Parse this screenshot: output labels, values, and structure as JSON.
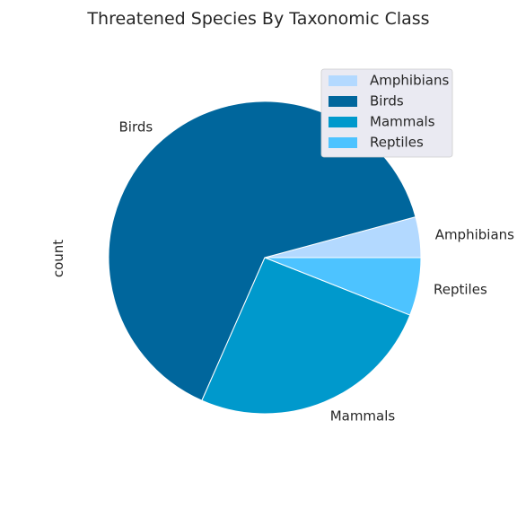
{
  "chart_data": {
    "type": "pie",
    "title": "Threatened Species By Taxonomic Class",
    "ylabel": "count",
    "start_angle_deg": 0,
    "direction": "counterclockwise",
    "slices": [
      {
        "label": "Amphibians",
        "value": 4.2,
        "color": "#b3d9ff"
      },
      {
        "label": "Birds",
        "value": 64.2,
        "color": "#00669c"
      },
      {
        "label": "Mammals",
        "value": 25.6,
        "color": "#0099cc"
      },
      {
        "label": "Reptiles",
        "value": 6.0,
        "color": "#4dc3ff"
      }
    ],
    "legend": {
      "placement": "top-right",
      "entries": [
        "Amphibians",
        "Birds",
        "Mammals",
        "Reptiles"
      ]
    },
    "slice_edge_color": "#ffffff",
    "legend_background": "#eaeaf2"
  }
}
